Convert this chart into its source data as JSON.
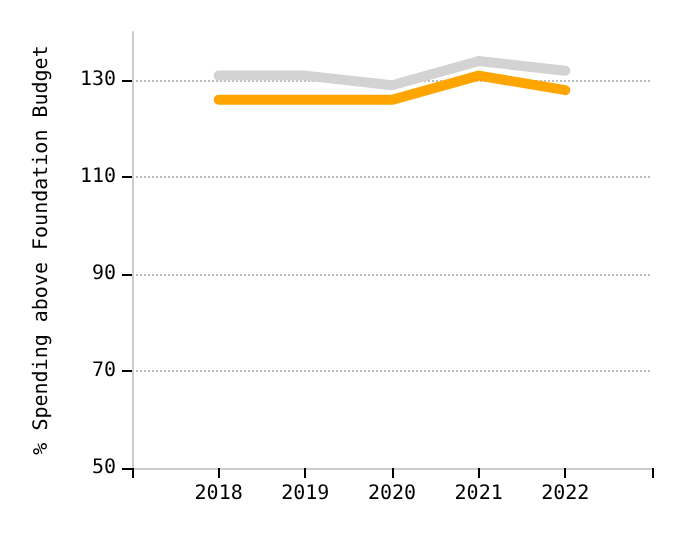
{
  "chart_data": {
    "type": "line",
    "ylabel": "% Spending above Foundation Budget",
    "x": [
      2018,
      2019,
      2020,
      2021,
      2022
    ],
    "series": [
      {
        "color": "#d3d3d3",
        "values": [
          131,
          131,
          129,
          134,
          132
        ]
      },
      {
        "color": "#ffa500",
        "values": [
          126,
          126,
          126,
          131,
          128
        ]
      }
    ],
    "xlim": [
      2017,
      2023
    ],
    "xticks": [
      {
        "value": 2017,
        "label": null
      },
      2018,
      2019,
      2020,
      2021,
      2022,
      {
        "value": 2023,
        "label": null
      }
    ],
    "ylim": [
      50,
      140
    ],
    "yticks": [
      50,
      70,
      90,
      110,
      130
    ],
    "grid": "y",
    "marker": "none",
    "line_style": "solid"
  }
}
